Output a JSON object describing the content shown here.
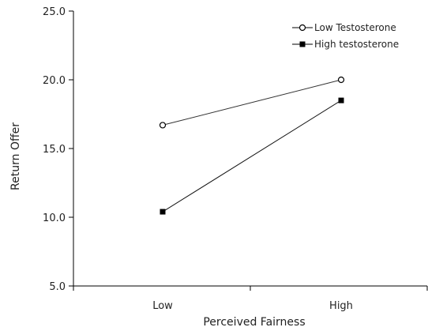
{
  "chart_data": {
    "type": "line",
    "title": "",
    "xlabel": "Perceived Fairness",
    "ylabel": "Return Offer",
    "categories": [
      "Low",
      "High"
    ],
    "ylim": [
      5.0,
      25.0
    ],
    "yticks": [
      "5.0",
      "10.0",
      "15.0",
      "20.0",
      "25.0"
    ],
    "grid": false,
    "legend_position": "top-right",
    "series": [
      {
        "name": "Low Testosterone",
        "values": [
          16.7,
          20.0
        ],
        "marker": "open-circle",
        "color": "#333333"
      },
      {
        "name": "High testosterone",
        "values": [
          10.4,
          18.5
        ],
        "marker": "filled-square",
        "color": "#111111"
      }
    ]
  }
}
